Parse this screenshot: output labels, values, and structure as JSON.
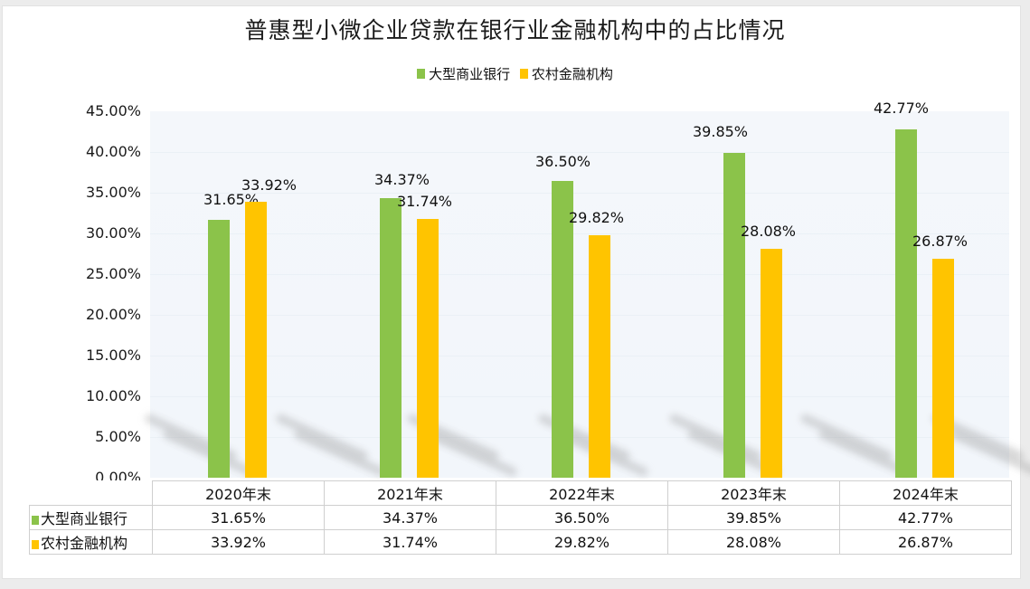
{
  "title": "普惠型小微企业贷款在银行业金融机构中的占比情况",
  "legend": [
    {
      "label": "大型商业银行",
      "color": "#8bc34a"
    },
    {
      "label": "农村金融机构",
      "color": "#ffc400"
    }
  ],
  "y_ticks": [
    "45.00%",
    "40.00%",
    "35.00%",
    "30.00%",
    "25.00%",
    "20.00%",
    "15.00%",
    "10.00%",
    "5.00%",
    "0.00%"
  ],
  "table": {
    "categories": [
      "2020年末",
      "2021年末",
      "2022年末",
      "2023年末",
      "2024年末"
    ],
    "rows": [
      {
        "label": "大型商业银行",
        "values": [
          "31.65%",
          "34.37%",
          "36.50%",
          "39.85%",
          "42.77%"
        ]
      },
      {
        "label": "农村金融机构",
        "values": [
          "33.92%",
          "31.74%",
          "29.82%",
          "28.08%",
          "26.87%"
        ]
      }
    ]
  },
  "chart_data": {
    "type": "bar",
    "title": "普惠型小微企业贷款在银行业金融机构中的占比情况",
    "categories": [
      "2020年末",
      "2021年末",
      "2022年末",
      "2023年末",
      "2024年末"
    ],
    "series": [
      {
        "name": "大型商业银行",
        "color": "#8bc34a",
        "values": [
          31.65,
          34.37,
          36.5,
          39.85,
          42.77
        ]
      },
      {
        "name": "农村金融机构",
        "color": "#ffc400",
        "values": [
          33.92,
          31.74,
          29.82,
          28.08,
          26.87
        ]
      }
    ],
    "xlabel": "",
    "ylabel": "",
    "ylim": [
      0,
      45
    ],
    "y_tick_step": 5,
    "y_format": "percent_2dp",
    "data_labels": true,
    "legend_position": "top",
    "grid": true,
    "data_table": true
  }
}
